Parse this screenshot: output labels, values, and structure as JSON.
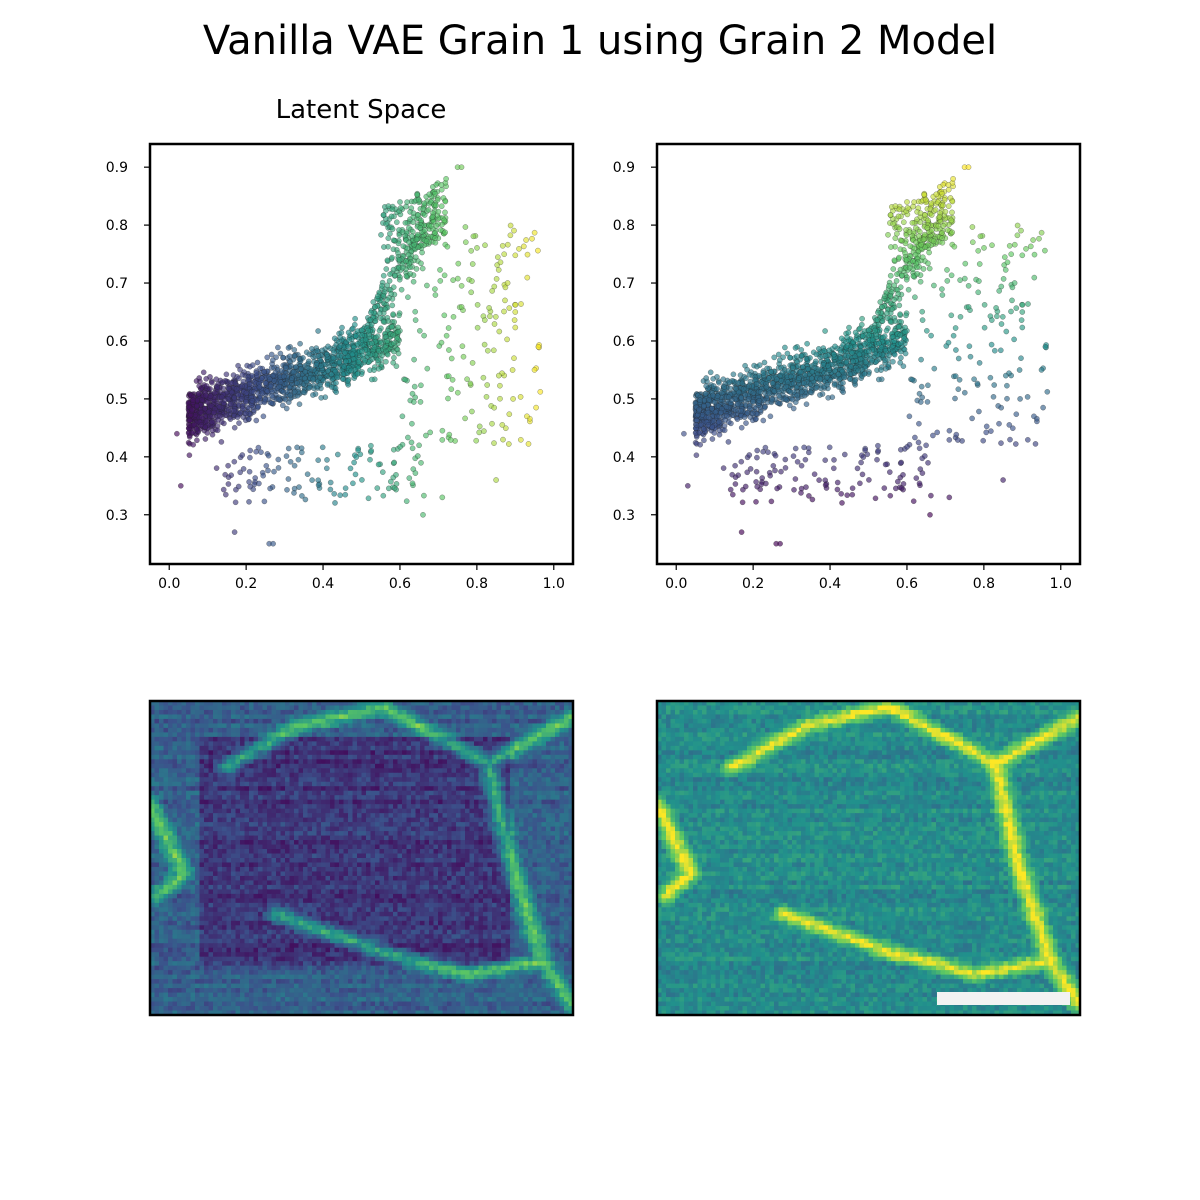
{
  "figure": {
    "title": "Vanilla VAE Grain 1 using Grain 2 Model",
    "background": "#ffffff"
  },
  "colormap": {
    "name": "viridis",
    "stops": [
      "#440154",
      "#3b528b",
      "#21918c",
      "#5ec962",
      "#fde725"
    ]
  },
  "chart_data": [
    {
      "type": "scatter",
      "panel": "latent-left",
      "title": "Latent Space",
      "xlabel": "",
      "ylabel": "",
      "xlim": [
        -0.05,
        1.05
      ],
      "ylim": [
        0.215,
        0.94
      ],
      "xticks": [
        0.0,
        0.2,
        0.4,
        0.6,
        0.8,
        1.0
      ],
      "xtick_labels": [
        "0.0",
        "0.2",
        "0.4",
        "0.6",
        "0.8",
        "1.0"
      ],
      "yticks": [
        0.3,
        0.4,
        0.5,
        0.6,
        0.7,
        0.8,
        0.9
      ],
      "ytick_labels": [
        "0.3",
        "0.4",
        "0.5",
        "0.6",
        "0.7",
        "0.8",
        "0.9"
      ],
      "grid": false,
      "color_by": "x",
      "point_cloud": {
        "dense_region": {
          "x_range": [
            0.05,
            0.6
          ],
          "y_center_at_x0": 0.47,
          "slope": 0.45,
          "y_spread": 0.14
        },
        "upper_lobe": {
          "x_range": [
            0.55,
            0.72
          ],
          "y_range": [
            0.78,
            0.88
          ]
        },
        "sparse_tail": {
          "x_range": [
            0.6,
            0.97
          ],
          "y_range": [
            0.42,
            0.8
          ]
        }
      },
      "points": [
        [
          0.02,
          0.44
        ],
        [
          0.03,
          0.35
        ],
        [
          0.17,
          0.27
        ],
        [
          0.26,
          0.25
        ],
        [
          0.27,
          0.25
        ],
        [
          0.85,
          0.36
        ],
        [
          0.71,
          0.33
        ],
        [
          0.96,
          0.59
        ],
        [
          0.95,
          0.55
        ],
        [
          0.93,
          0.47
        ],
        [
          0.75,
          0.9
        ],
        [
          0.76,
          0.9
        ],
        [
          0.88,
          0.7
        ],
        [
          0.9,
          0.65
        ],
        [
          0.66,
          0.3
        ],
        [
          0.72,
          0.88
        ]
      ]
    },
    {
      "type": "scatter",
      "panel": "latent-right",
      "title": "",
      "xlabel": "",
      "ylabel": "",
      "xlim": [
        -0.05,
        1.05
      ],
      "ylim": [
        0.215,
        0.94
      ],
      "xticks": [
        0.0,
        0.2,
        0.4,
        0.6,
        0.8,
        1.0
      ],
      "xtick_labels": [
        "0.0",
        "0.2",
        "0.4",
        "0.6",
        "0.8",
        "1.0"
      ],
      "yticks": [
        0.3,
        0.4,
        0.5,
        0.6,
        0.7,
        0.8,
        0.9
      ],
      "ytick_labels": [
        "0.3",
        "0.4",
        "0.5",
        "0.6",
        "0.7",
        "0.8",
        "0.9"
      ],
      "grid": false,
      "color_by": "y",
      "point_cloud": {
        "dense_region": {
          "x_range": [
            0.05,
            0.6
          ],
          "y_center_at_x0": 0.47,
          "slope": 0.45,
          "y_spread": 0.14
        },
        "upper_lobe": {
          "x_range": [
            0.55,
            0.72
          ],
          "y_range": [
            0.78,
            0.88
          ]
        },
        "sparse_tail": {
          "x_range": [
            0.6,
            0.97
          ],
          "y_range": [
            0.42,
            0.8
          ]
        }
      },
      "points": [
        [
          0.02,
          0.44
        ],
        [
          0.03,
          0.35
        ],
        [
          0.17,
          0.27
        ],
        [
          0.26,
          0.25
        ],
        [
          0.27,
          0.25
        ],
        [
          0.85,
          0.36
        ],
        [
          0.71,
          0.33
        ],
        [
          0.96,
          0.59
        ],
        [
          0.95,
          0.55
        ],
        [
          0.93,
          0.47
        ],
        [
          0.75,
          0.9
        ],
        [
          0.76,
          0.9
        ],
        [
          0.88,
          0.7
        ],
        [
          0.9,
          0.65
        ],
        [
          0.66,
          0.3
        ],
        [
          0.72,
          0.88
        ]
      ]
    },
    {
      "type": "heatmap",
      "panel": "image-left",
      "title": "",
      "colormap": "viridis",
      "axes_ticks": false,
      "scale_bar": false
    },
    {
      "type": "heatmap",
      "panel": "image-right",
      "title": "",
      "colormap": "viridis",
      "axes_ticks": false,
      "scale_bar": true
    }
  ]
}
